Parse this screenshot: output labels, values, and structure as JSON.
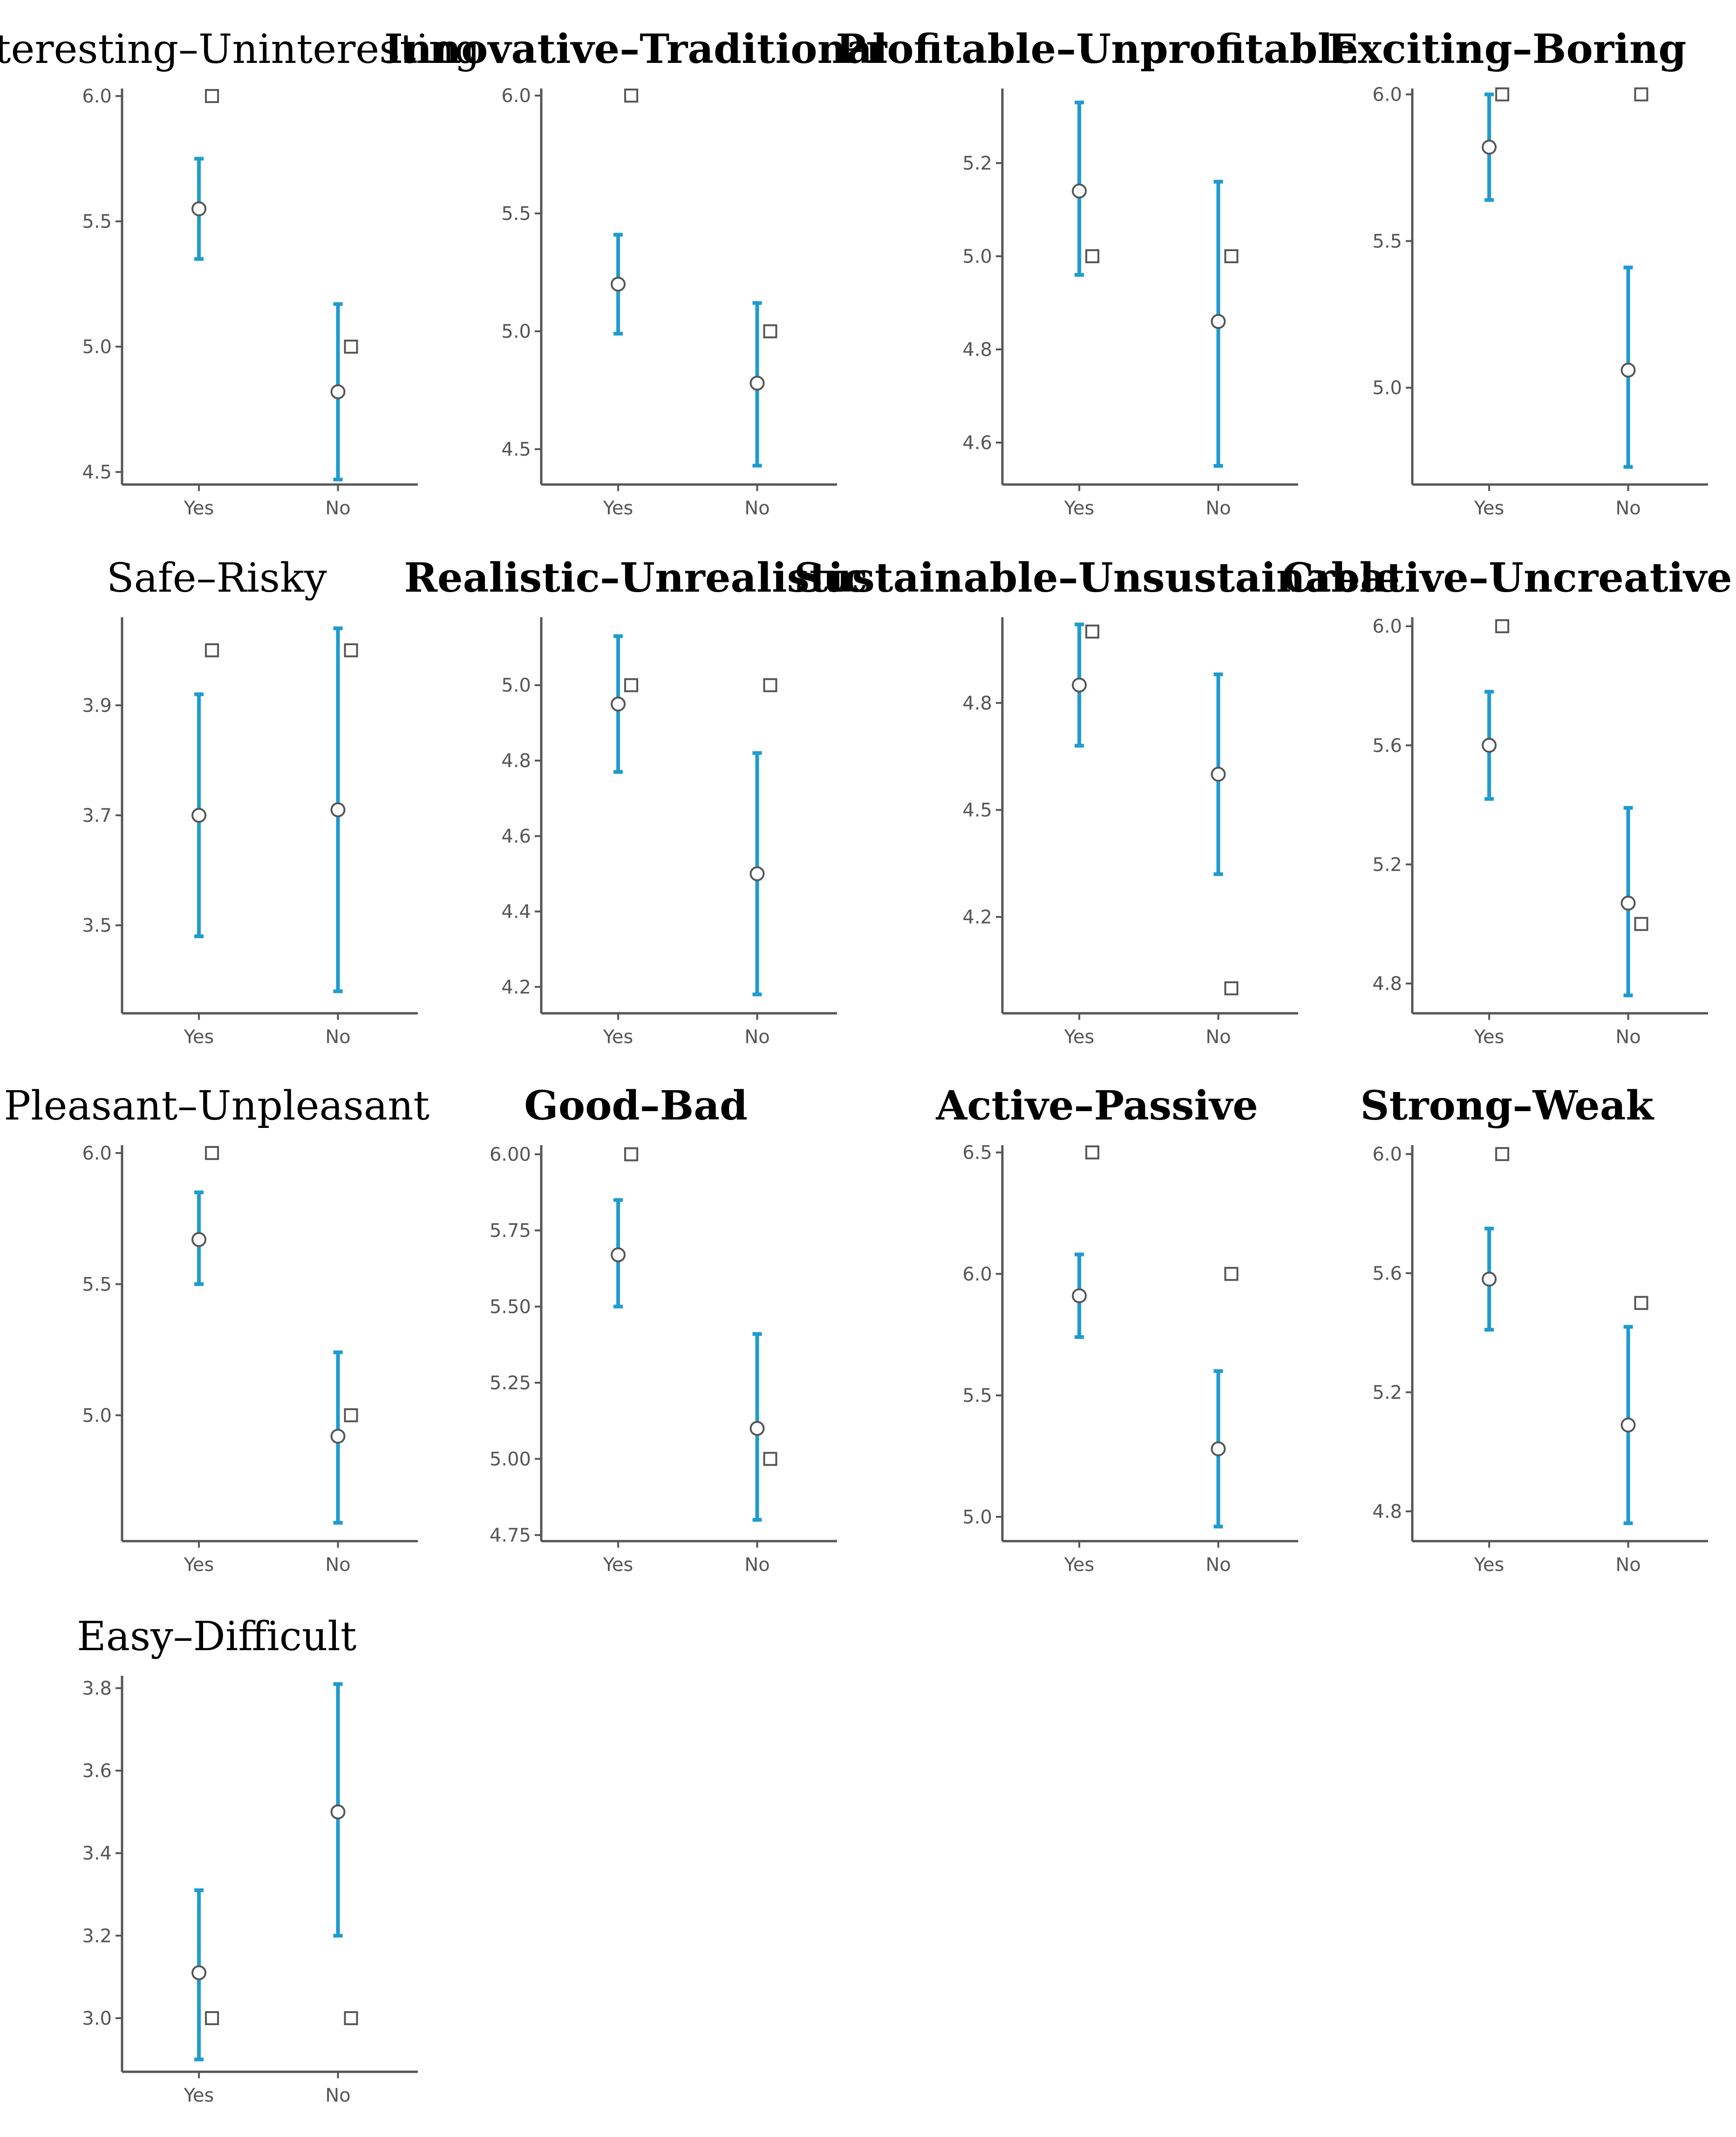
{
  "figure": {
    "colors": {
      "error_bar": "#1f9bcf",
      "axis": "#555555",
      "marker_edge": "#555555"
    }
  },
  "chart_data": [
    {
      "type": "errorbar",
      "title": "Interesting–Uninteresting",
      "title_bold": false,
      "categories": [
        "Yes",
        "No"
      ],
      "yticks": [
        4.5,
        5.0,
        5.5,
        6.0
      ],
      "ytick_labels": [
        "4.5",
        "5.0",
        "5.5",
        "6.0"
      ],
      "ylim": [
        4.45,
        6.03
      ],
      "mean": [
        5.55,
        4.82
      ],
      "ci_low": [
        5.35,
        4.47
      ],
      "ci_high": [
        5.75,
        5.17
      ],
      "median": [
        6.0,
        5.0
      ]
    },
    {
      "type": "errorbar",
      "title": "Innovative–Traditional",
      "title_bold": true,
      "categories": [
        "Yes",
        "No"
      ],
      "yticks": [
        4.5,
        5.0,
        5.5,
        6.0
      ],
      "ytick_labels": [
        "4.5",
        "5.0",
        "5.5",
        "6.0"
      ],
      "ylim": [
        4.35,
        6.03
      ],
      "mean": [
        5.2,
        4.78
      ],
      "ci_low": [
        4.99,
        4.43
      ],
      "ci_high": [
        5.41,
        5.12
      ],
      "median": [
        6.0,
        5.0
      ]
    },
    {
      "type": "errorbar",
      "title": "Profitable–Unprofitable",
      "title_bold": true,
      "categories": [
        "Yes",
        "No"
      ],
      "yticks": [
        4.6,
        4.8,
        5.0,
        5.2
      ],
      "ytick_labels": [
        "4.6",
        "4.8",
        "5.0",
        "5.2"
      ],
      "ylim": [
        4.51,
        5.36
      ],
      "mean": [
        5.14,
        4.86
      ],
      "ci_low": [
        4.96,
        4.55
      ],
      "ci_high": [
        5.33,
        5.16
      ],
      "median": [
        5.0,
        5.0
      ]
    },
    {
      "type": "errorbar",
      "title": "Exciting–Boring",
      "title_bold": true,
      "categories": [
        "Yes",
        "No"
      ],
      "yticks": [
        5.0,
        5.5,
        6.0
      ],
      "ytick_labels": [
        "5.0",
        "5.5",
        "6.0"
      ],
      "ylim": [
        4.67,
        6.02
      ],
      "mean": [
        5.82,
        5.06
      ],
      "ci_low": [
        5.64,
        4.73
      ],
      "ci_high": [
        6.0,
        5.41
      ],
      "median": [
        6.0,
        6.0
      ]
    },
    {
      "type": "errorbar",
      "title": "Safe–Risky",
      "title_bold": false,
      "categories": [
        "Yes",
        "No"
      ],
      "yticks": [
        3.5,
        3.7,
        3.9
      ],
      "ytick_labels": [
        "3.5",
        "3.7",
        "3.9"
      ],
      "ylim": [
        3.34,
        4.06
      ],
      "mean": [
        3.7,
        3.71
      ],
      "ci_low": [
        3.48,
        3.38
      ],
      "ci_high": [
        3.92,
        4.04
      ],
      "median": [
        4.0,
        4.0
      ]
    },
    {
      "type": "errorbar",
      "title": "Realistic–Unrealistic",
      "title_bold": true,
      "categories": [
        "Yes",
        "No"
      ],
      "yticks": [
        4.2,
        4.4,
        4.6,
        4.8,
        5.0
      ],
      "ytick_labels": [
        "4.2",
        "4.4",
        "4.6",
        "4.8",
        "5.0"
      ],
      "ylim": [
        4.13,
        5.18
      ],
      "mean": [
        4.95,
        4.5
      ],
      "ci_low": [
        4.77,
        4.18
      ],
      "ci_high": [
        5.13,
        4.82
      ],
      "median": [
        5.0,
        5.0
      ]
    },
    {
      "type": "errorbar",
      "title": "Sustainable–Unsustainable",
      "title_bold": true,
      "categories": [
        "Yes",
        "No"
      ],
      "yticks": [
        4.2,
        4.5,
        4.8
      ],
      "ytick_labels": [
        "4.2",
        "4.5",
        "4.8"
      ],
      "ylim": [
        3.93,
        5.04
      ],
      "mean": [
        4.85,
        4.6
      ],
      "ci_low": [
        4.68,
        4.32
      ],
      "ci_high": [
        5.02,
        4.88
      ],
      "median": [
        5.0,
        4.0
      ]
    },
    {
      "type": "errorbar",
      "title": "Creative–Uncreative",
      "title_bold": true,
      "categories": [
        "Yes",
        "No"
      ],
      "yticks": [
        4.8,
        5.2,
        5.6,
        6.0
      ],
      "ytick_labels": [
        "4.8",
        "5.2",
        "5.6",
        "6.0"
      ],
      "ylim": [
        4.7,
        6.03
      ],
      "mean": [
        5.6,
        5.07
      ],
      "ci_low": [
        5.42,
        4.76
      ],
      "ci_high": [
        5.78,
        5.39
      ],
      "median": [
        6.0,
        5.0
      ]
    },
    {
      "type": "errorbar",
      "title": "Pleasant–Unpleasant",
      "title_bold": false,
      "categories": [
        "Yes",
        "No"
      ],
      "yticks": [
        5.0,
        5.5,
        6.0
      ],
      "ytick_labels": [
        "5.0",
        "5.5",
        "6.0"
      ],
      "ylim": [
        4.52,
        6.03
      ],
      "mean": [
        5.67,
        4.92
      ],
      "ci_low": [
        5.5,
        4.59
      ],
      "ci_high": [
        5.85,
        5.24
      ],
      "median": [
        6.0,
        5.0
      ]
    },
    {
      "type": "errorbar",
      "title": "Good–Bad",
      "title_bold": true,
      "categories": [
        "Yes",
        "No"
      ],
      "yticks": [
        4.75,
        5.0,
        5.25,
        5.5,
        5.75,
        6.0
      ],
      "ytick_labels": [
        "4.75",
        "5.00",
        "5.25",
        "5.50",
        "5.75",
        "6.00"
      ],
      "ylim": [
        4.73,
        6.03
      ],
      "mean": [
        5.67,
        5.1
      ],
      "ci_low": [
        5.5,
        4.8
      ],
      "ci_high": [
        5.85,
        5.41
      ],
      "median": [
        6.0,
        5.0
      ]
    },
    {
      "type": "errorbar",
      "title": "Active–Passive",
      "title_bold": true,
      "categories": [
        "Yes",
        "No"
      ],
      "yticks": [
        5.0,
        5.5,
        6.0,
        6.5
      ],
      "ytick_labels": [
        "5.0",
        "5.5",
        "6.0",
        "6.5"
      ],
      "ylim": [
        4.9,
        6.53
      ],
      "mean": [
        5.91,
        5.28
      ],
      "ci_low": [
        5.74,
        4.96
      ],
      "ci_high": [
        6.08,
        5.6
      ],
      "median": [
        6.5,
        6.0
      ]
    },
    {
      "type": "errorbar",
      "title": "Strong–Weak",
      "title_bold": true,
      "categories": [
        "Yes",
        "No"
      ],
      "yticks": [
        4.8,
        5.2,
        5.6,
        6.0
      ],
      "ytick_labels": [
        "4.8",
        "5.2",
        "5.6",
        "6.0"
      ],
      "ylim": [
        4.7,
        6.03
      ],
      "mean": [
        5.58,
        5.09
      ],
      "ci_low": [
        5.41,
        4.76
      ],
      "ci_high": [
        5.75,
        5.42
      ],
      "median": [
        6.0,
        5.5
      ]
    },
    {
      "type": "errorbar",
      "title": "Easy–Difficult",
      "title_bold": false,
      "categories": [
        "Yes",
        "No"
      ],
      "yticks": [
        3.0,
        3.2,
        3.4,
        3.6,
        3.8
      ],
      "ytick_labels": [
        "3.0",
        "3.2",
        "3.4",
        "3.6",
        "3.8"
      ],
      "ylim": [
        2.87,
        3.83
      ],
      "mean": [
        3.11,
        3.5
      ],
      "ci_low": [
        2.9,
        3.2
      ],
      "ci_high": [
        3.31,
        3.81
      ],
      "median": [
        3.0,
        3.0
      ]
    }
  ]
}
